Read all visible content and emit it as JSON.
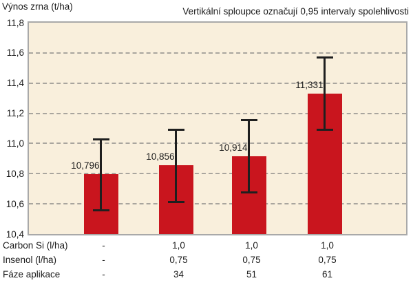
{
  "header": {
    "y_axis_title": "Výnos zrna (t/ha)",
    "subtitle": "Vertikální sploupce označují 0,95 intervaly spolehlivosti"
  },
  "chart_data": {
    "type": "bar",
    "title": "",
    "subtitle": "Vertikální sploupce označují 0,95 intervaly spolehlivosti",
    "ylabel": "Výnos zrna (t/ha)",
    "xlabel": "",
    "ylim": [
      10.4,
      11.8
    ],
    "grid": "horizontal-dashed",
    "legend_position": "none",
    "error_bars": "0.95 confidence intervals",
    "yticks": [
      {
        "label": "11,8",
        "value": 11.8
      },
      {
        "label": "11,6",
        "value": 11.6
      },
      {
        "label": "11,4",
        "value": 11.4
      },
      {
        "label": "11,2",
        "value": 11.2
      },
      {
        "label": "11,0",
        "value": 11.0
      },
      {
        "label": "10,8",
        "value": 10.8
      },
      {
        "label": "10,6",
        "value": 10.6
      },
      {
        "label": "10,4",
        "value": 10.4
      }
    ],
    "bars": [
      {
        "value": 10.796,
        "label": "10,796",
        "ci_low": 10.55,
        "ci_high": 11.035
      },
      {
        "value": 10.856,
        "label": "10,856",
        "ci_low": 10.607,
        "ci_high": 11.099
      },
      {
        "value": 10.914,
        "label": "10,914",
        "ci_low": 10.668,
        "ci_high": 11.161
      },
      {
        "value": 11.331,
        "label": "11,331",
        "ci_low": 11.085,
        "ci_high": 11.578
      }
    ]
  },
  "footer_table": {
    "rows": [
      {
        "label": "Carbon Si (l/ha)",
        "values": [
          "-",
          "1,0",
          "1,0",
          "1,0"
        ]
      },
      {
        "label": "Insenol (l/ha)",
        "values": [
          "-",
          "0,75",
          "0,75",
          "0,75"
        ]
      },
      {
        "label": "Fáze aplikace",
        "values": [
          "-",
          "34",
          "51",
          "61"
        ]
      }
    ]
  },
  "colors": {
    "bar": "#c9151e",
    "plot_background": "#f9efdc",
    "plot_border": "#a9a9a9",
    "gridline": "#a9a59e",
    "error_bar": "#1f1f1f",
    "text": "#1a1a1a",
    "page_background": "#ffffff"
  }
}
